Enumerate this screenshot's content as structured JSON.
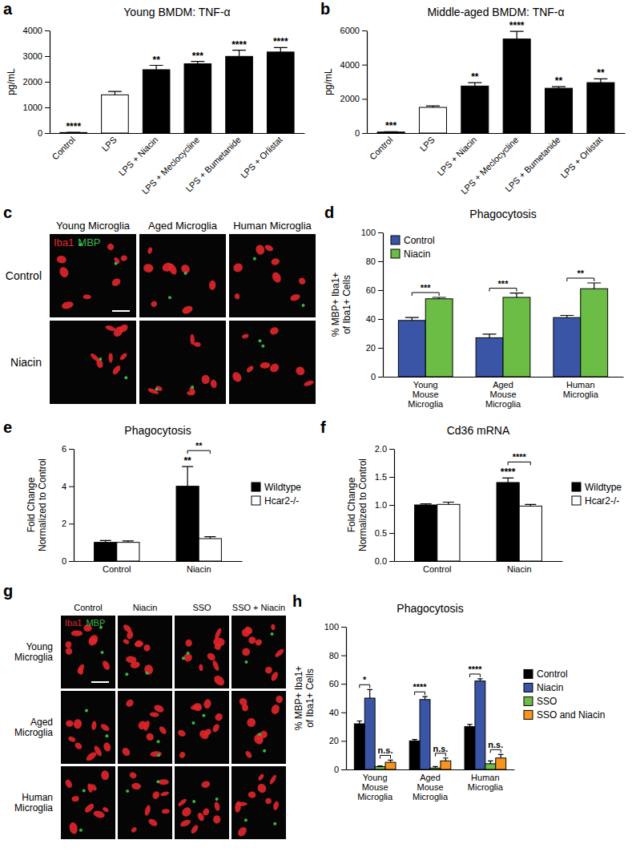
{
  "chart_data": [
    {
      "panel": "a",
      "type": "bar",
      "title": "Young BMDM: TNF-α",
      "y_label": "pg/mL",
      "categories": [
        "Control",
        "LPS",
        "LPS + Niacin",
        "LPS + Meclocycline",
        "LPS + Bumetanide",
        "LPS + Orlistat"
      ],
      "values": [
        20,
        1490,
        2470,
        2700,
        2990,
        3160
      ],
      "errors": [
        10,
        130,
        170,
        90,
        240,
        170
      ],
      "colors": [
        "#000000",
        "#ffffff",
        "#000000",
        "#000000",
        "#000000",
        "#000000"
      ],
      "significance": [
        "****",
        null,
        "**",
        "***",
        "****",
        "****"
      ],
      "ylim": [
        0,
        4000
      ],
      "yticks": [
        0,
        1000,
        2000,
        3000,
        4000
      ]
    },
    {
      "panel": "b",
      "type": "bar",
      "title": "Middle-aged BMDM: TNF-α",
      "y_label": "pg/mL",
      "categories": [
        "Control",
        "LPS",
        "LPS + Niacin",
        "LPS + Meclocycline",
        "LPS + Bumetanide",
        "LPS + Orlistat"
      ],
      "values": [
        60,
        1500,
        2750,
        5500,
        2620,
        2950
      ],
      "errors": [
        20,
        90,
        200,
        450,
        90,
        220
      ],
      "colors": [
        "#000000",
        "#ffffff",
        "#000000",
        "#000000",
        "#000000",
        "#000000"
      ],
      "significance": [
        "***",
        null,
        "**",
        "****",
        "**",
        "**"
      ],
      "ylim": [
        0,
        6000
      ],
      "yticks": [
        0,
        2000,
        4000,
        6000
      ]
    },
    {
      "panel": "d",
      "type": "bar",
      "title": "Phagocytosis",
      "y_label": "% MBP+ Iba1+\nof Iba1+ Cells",
      "categories": [
        "Young Mouse Microglia",
        "Aged Mouse Microglia",
        "Human Microglia"
      ],
      "series": [
        {
          "name": "Control",
          "color": "#3a55a5",
          "values": [
            39,
            27,
            41
          ],
          "errors": [
            2,
            2.5,
            1.5
          ]
        },
        {
          "name": "Niacin",
          "color": "#6cbd45",
          "values": [
            54,
            55,
            61
          ],
          "errors": [
            1,
            3,
            4
          ]
        }
      ],
      "comparisons": [
        {
          "category": "Young Mouse Microglia",
          "series": [
            "Control",
            "Niacin"
          ],
          "label": "***"
        },
        {
          "category": "Aged Mouse Microglia",
          "series": [
            "Control",
            "Niacin"
          ],
          "label": "***"
        },
        {
          "category": "Human Microglia",
          "series": [
            "Control",
            "Niacin"
          ],
          "label": "**"
        }
      ],
      "legend": "upper left",
      "ylim": [
        0,
        100
      ],
      "yticks": [
        0,
        20,
        40,
        60,
        80,
        100
      ]
    },
    {
      "panel": "e",
      "type": "bar",
      "title": "Phagocytosis",
      "y_label": "Fold Change\nNormalized to Control",
      "categories": [
        "Control",
        "Niacin"
      ],
      "series": [
        {
          "name": "Wildtype",
          "color": "#000000",
          "values": [
            1.0,
            4.0
          ],
          "errors": [
            0.1,
            1.05
          ],
          "significance": [
            null,
            "**"
          ]
        },
        {
          "name": "Hcar2-/-",
          "color": "#ffffff",
          "values": [
            1.0,
            1.2
          ],
          "errors": [
            0.08,
            0.1
          ]
        }
      ],
      "comparisons": [
        {
          "category": "Niacin",
          "series": [
            "Wildtype",
            "Hcar2-/-"
          ],
          "label": "**"
        }
      ],
      "legend": "right",
      "ylim": [
        0,
        6
      ],
      "yticks": [
        0,
        2,
        4,
        6
      ]
    },
    {
      "panel": "f",
      "type": "bar",
      "title": "Cd36 mRNA",
      "y_label": "Fold Change\nNormalized to Control",
      "categories": [
        "Control",
        "Niacin"
      ],
      "series": [
        {
          "name": "Wildtype",
          "color": "#000000",
          "values": [
            1.0,
            1.4
          ],
          "errors": [
            0.02,
            0.08
          ],
          "significance": [
            null,
            "****"
          ]
        },
        {
          "name": "Hcar2-/-",
          "color": "#ffffff",
          "values": [
            1.01,
            0.98
          ],
          "errors": [
            0.04,
            0.03
          ]
        }
      ],
      "comparisons": [
        {
          "category": "Niacin",
          "series": [
            "Wildtype",
            "Hcar2-/-"
          ],
          "label": "****"
        }
      ],
      "legend": "right",
      "ylim": [
        0,
        2
      ],
      "yticks": [
        {
          "value": 0,
          "label": "0.0"
        },
        0.5,
        {
          "value": 1,
          "label": "1.0"
        },
        1.5,
        {
          "value": 2,
          "label": "2.0"
        }
      ]
    },
    {
      "panel": "h",
      "type": "bar",
      "title": "Phagocytosis",
      "y_label": "% MBP+ Iba1+\nof Iba1+ Cells",
      "categories": [
        "Young Mouse Microglia",
        "Aged Mouse Microglia",
        "Human Microglia"
      ],
      "series": [
        {
          "name": "Control",
          "color": "#000000",
          "values": [
            32,
            20,
            30
          ],
          "errors": [
            2,
            1,
            1.5
          ]
        },
        {
          "name": "Niacin",
          "color": "#3a55a5",
          "values": [
            50,
            49,
            62
          ],
          "errors": [
            6,
            2,
            1.5
          ]
        },
        {
          "name": "SSO",
          "color": "#6cbd45",
          "values": [
            2,
            1,
            4
          ],
          "errors": [
            0.5,
            1,
            2
          ]
        },
        {
          "name": "SSO and Niacin",
          "color": "#f7941d",
          "values": [
            5,
            6,
            8
          ],
          "errors": [
            1.5,
            2,
            2.5
          ]
        }
      ],
      "comparisons": [
        {
          "category": "Young Mouse Microglia",
          "series": [
            "Control",
            "Niacin"
          ],
          "label": "*"
        },
        {
          "category": "Young Mouse Microglia",
          "series": [
            "SSO",
            "SSO and Niacin"
          ],
          "label": "n.s."
        },
        {
          "category": "Aged Mouse Microglia",
          "series": [
            "Control",
            "Niacin"
          ],
          "label": "****"
        },
        {
          "category": "Aged Mouse Microglia",
          "series": [
            "SSO",
            "SSO and Niacin"
          ],
          "label": "n.s."
        },
        {
          "category": "Human Microglia",
          "series": [
            "Control",
            "Niacin"
          ],
          "label": "****"
        },
        {
          "category": "Human Microglia",
          "series": [
            "SSO",
            "SSO and Niacin"
          ],
          "label": "n.s."
        }
      ],
      "legend": "right",
      "ylim": [
        0,
        100
      ],
      "yticks": [
        0,
        20,
        40,
        60,
        80,
        100
      ]
    }
  ],
  "image_panels": [
    {
      "panel": "c",
      "columns": [
        "Young Microglia",
        "Aged Microglia",
        "Human Microglia"
      ],
      "rows": [
        "Control",
        "Niacin"
      ],
      "stains": [
        {
          "name": "Iba1",
          "color": "#e3262b"
        },
        {
          "name": "MBP",
          "color": "#39b54a"
        }
      ]
    },
    {
      "panel": "g",
      "columns": [
        "Control",
        "Niacin",
        "SSO",
        "SSO + Niacin"
      ],
      "rows": [
        "Young Microglia",
        "Aged Microglia",
        "Human Microglia"
      ],
      "stains": [
        {
          "name": "Iba1",
          "color": "#e3262b"
        },
        {
          "name": "MBP",
          "color": "#39b54a"
        }
      ]
    }
  ]
}
